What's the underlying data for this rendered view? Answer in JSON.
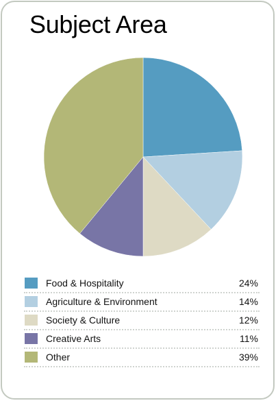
{
  "chart_data": {
    "type": "pie",
    "title": "Subject Area",
    "slices": [
      {
        "label": "Food & Hospitality",
        "value": 24,
        "display": "24%",
        "color": "#559cc1"
      },
      {
        "label": "Agriculture & Environment",
        "value": 14,
        "display": "14%",
        "color": "#b3cfe1"
      },
      {
        "label": "Society & Culture",
        "value": 12,
        "display": "12%",
        "color": "#dedac4"
      },
      {
        "label": "Creative Arts",
        "value": 11,
        "display": "11%",
        "color": "#7875a6"
      },
      {
        "label": "Other",
        "value": 39,
        "display": "39%",
        "color": "#b3b777"
      }
    ],
    "start_angle": "12 o'clock",
    "direction": "clockwise",
    "legend_position": "bottom"
  }
}
